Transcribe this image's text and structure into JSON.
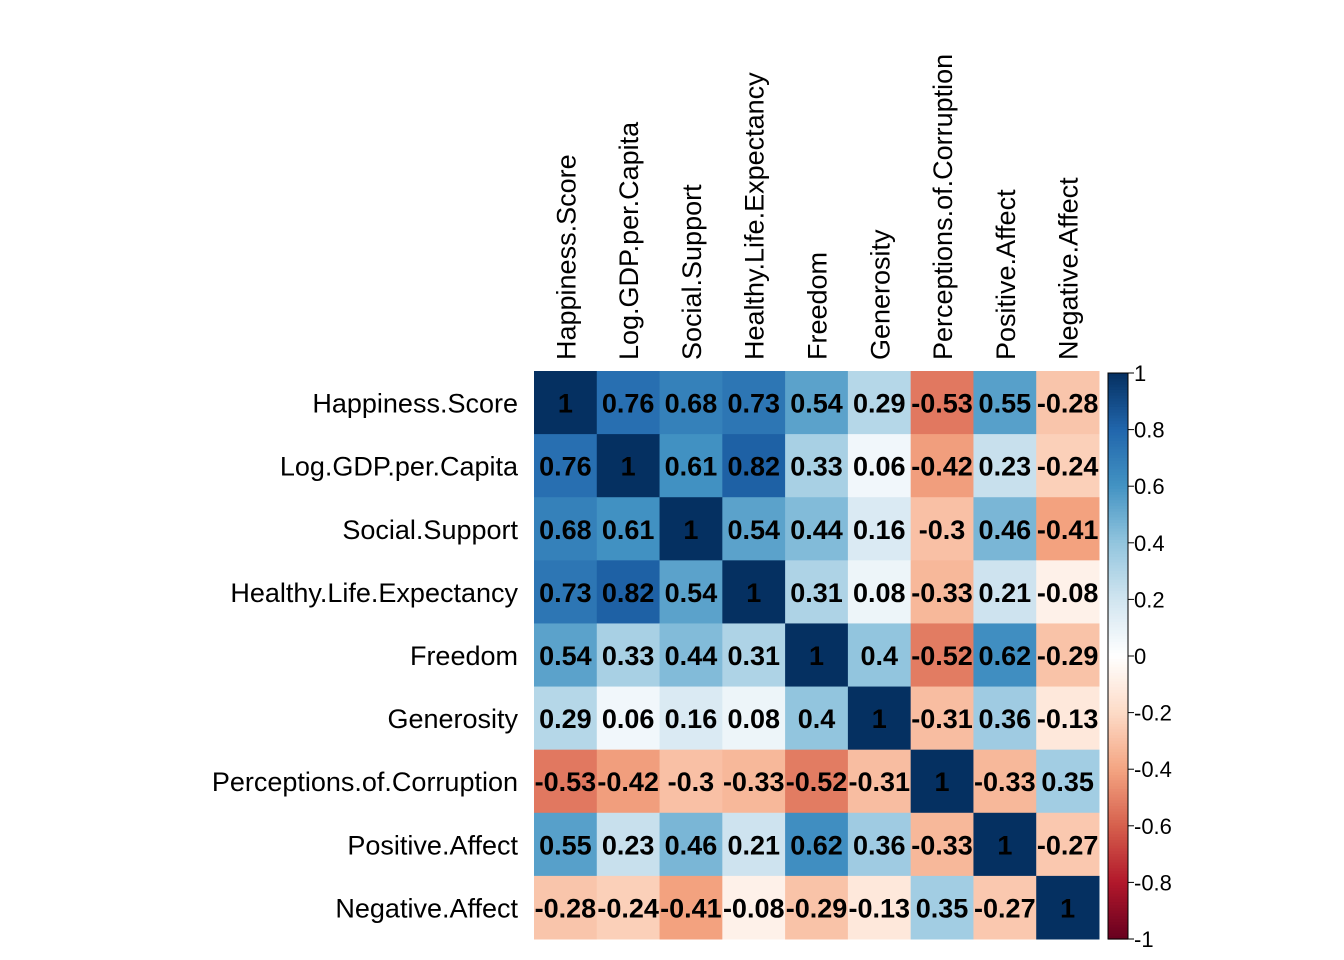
{
  "chart_data": {
    "type": "heatmap",
    "variables": [
      "Happiness.Score",
      "Log.GDP.per.Capita",
      "Social.Support",
      "Healthy.Life.Expectancy",
      "Freedom",
      "Generosity",
      "Perceptions.of.Corruption",
      "Positive.Affect",
      "Negative.Affect"
    ],
    "matrix": [
      [
        1,
        0.76,
        0.68,
        0.73,
        0.54,
        0.29,
        -0.53,
        0.55,
        -0.28
      ],
      [
        0.76,
        1,
        0.61,
        0.82,
        0.33,
        0.06,
        -0.42,
        0.23,
        -0.24
      ],
      [
        0.68,
        0.61,
        1,
        0.54,
        0.44,
        0.16,
        -0.3,
        0.46,
        -0.41
      ],
      [
        0.73,
        0.82,
        0.54,
        1,
        0.31,
        0.08,
        -0.33,
        0.21,
        -0.08
      ],
      [
        0.54,
        0.33,
        0.44,
        0.31,
        1,
        0.4,
        -0.52,
        0.62,
        -0.29
      ],
      [
        0.29,
        0.06,
        0.16,
        0.08,
        0.4,
        1,
        -0.31,
        0.36,
        -0.13
      ],
      [
        -0.53,
        -0.42,
        -0.3,
        -0.33,
        -0.52,
        -0.31,
        1,
        -0.33,
        0.35
      ],
      [
        0.55,
        0.23,
        0.46,
        0.21,
        0.62,
        0.36,
        -0.33,
        1,
        -0.27
      ],
      [
        -0.28,
        -0.24,
        -0.41,
        -0.08,
        -0.29,
        -0.13,
        0.35,
        -0.27,
        1
      ]
    ],
    "value_labels": [
      [
        "1",
        "0.76",
        "0.68",
        "0.73",
        "0.54",
        "0.29",
        "-0.53",
        "0.55",
        "-0.28"
      ],
      [
        "0.76",
        "1",
        "0.61",
        "0.82",
        "0.33",
        "0.06",
        "-0.42",
        "0.23",
        "-0.24"
      ],
      [
        "0.68",
        "0.61",
        "1",
        "0.54",
        "0.44",
        "0.16",
        "-0.3",
        "0.46",
        "-0.41"
      ],
      [
        "0.73",
        "0.82",
        "0.54",
        "1",
        "0.31",
        "0.08",
        "-0.33",
        "0.21",
        "-0.08"
      ],
      [
        "0.54",
        "0.33",
        "0.44",
        "0.31",
        "1",
        "0.4",
        "-0.52",
        "0.62",
        "-0.29"
      ],
      [
        "0.29",
        "0.06",
        "0.16",
        "0.08",
        "0.4",
        "1",
        "-0.31",
        "0.36",
        "-0.13"
      ],
      [
        "-0.53",
        "-0.42",
        "-0.3",
        "-0.33",
        "-0.52",
        "-0.31",
        "1",
        "-0.33",
        "0.35"
      ],
      [
        "0.55",
        "0.23",
        "0.46",
        "0.21",
        "0.62",
        "0.36",
        "-0.33",
        "1",
        "-0.27"
      ],
      [
        "-0.28",
        "-0.24",
        "-0.41",
        "-0.08",
        "-0.29",
        "-0.13",
        "0.35",
        "-0.27",
        "1"
      ]
    ],
    "color_scale": {
      "range": [
        -1,
        1
      ],
      "colors": [
        "#67001F",
        "#B2182B",
        "#D6604D",
        "#F4A582",
        "#FDDBC7",
        "#FFFFFF",
        "#D1E5F0",
        "#92C5DE",
        "#4393C3",
        "#2166AC",
        "#053061"
      ],
      "legend_ticks": [
        "1",
        "0.8",
        "0.6",
        "0.4",
        "0.2",
        "0",
        "-0.2",
        "-0.4",
        "-0.6",
        "-0.8",
        "-1"
      ],
      "legend_placement": "right"
    }
  }
}
